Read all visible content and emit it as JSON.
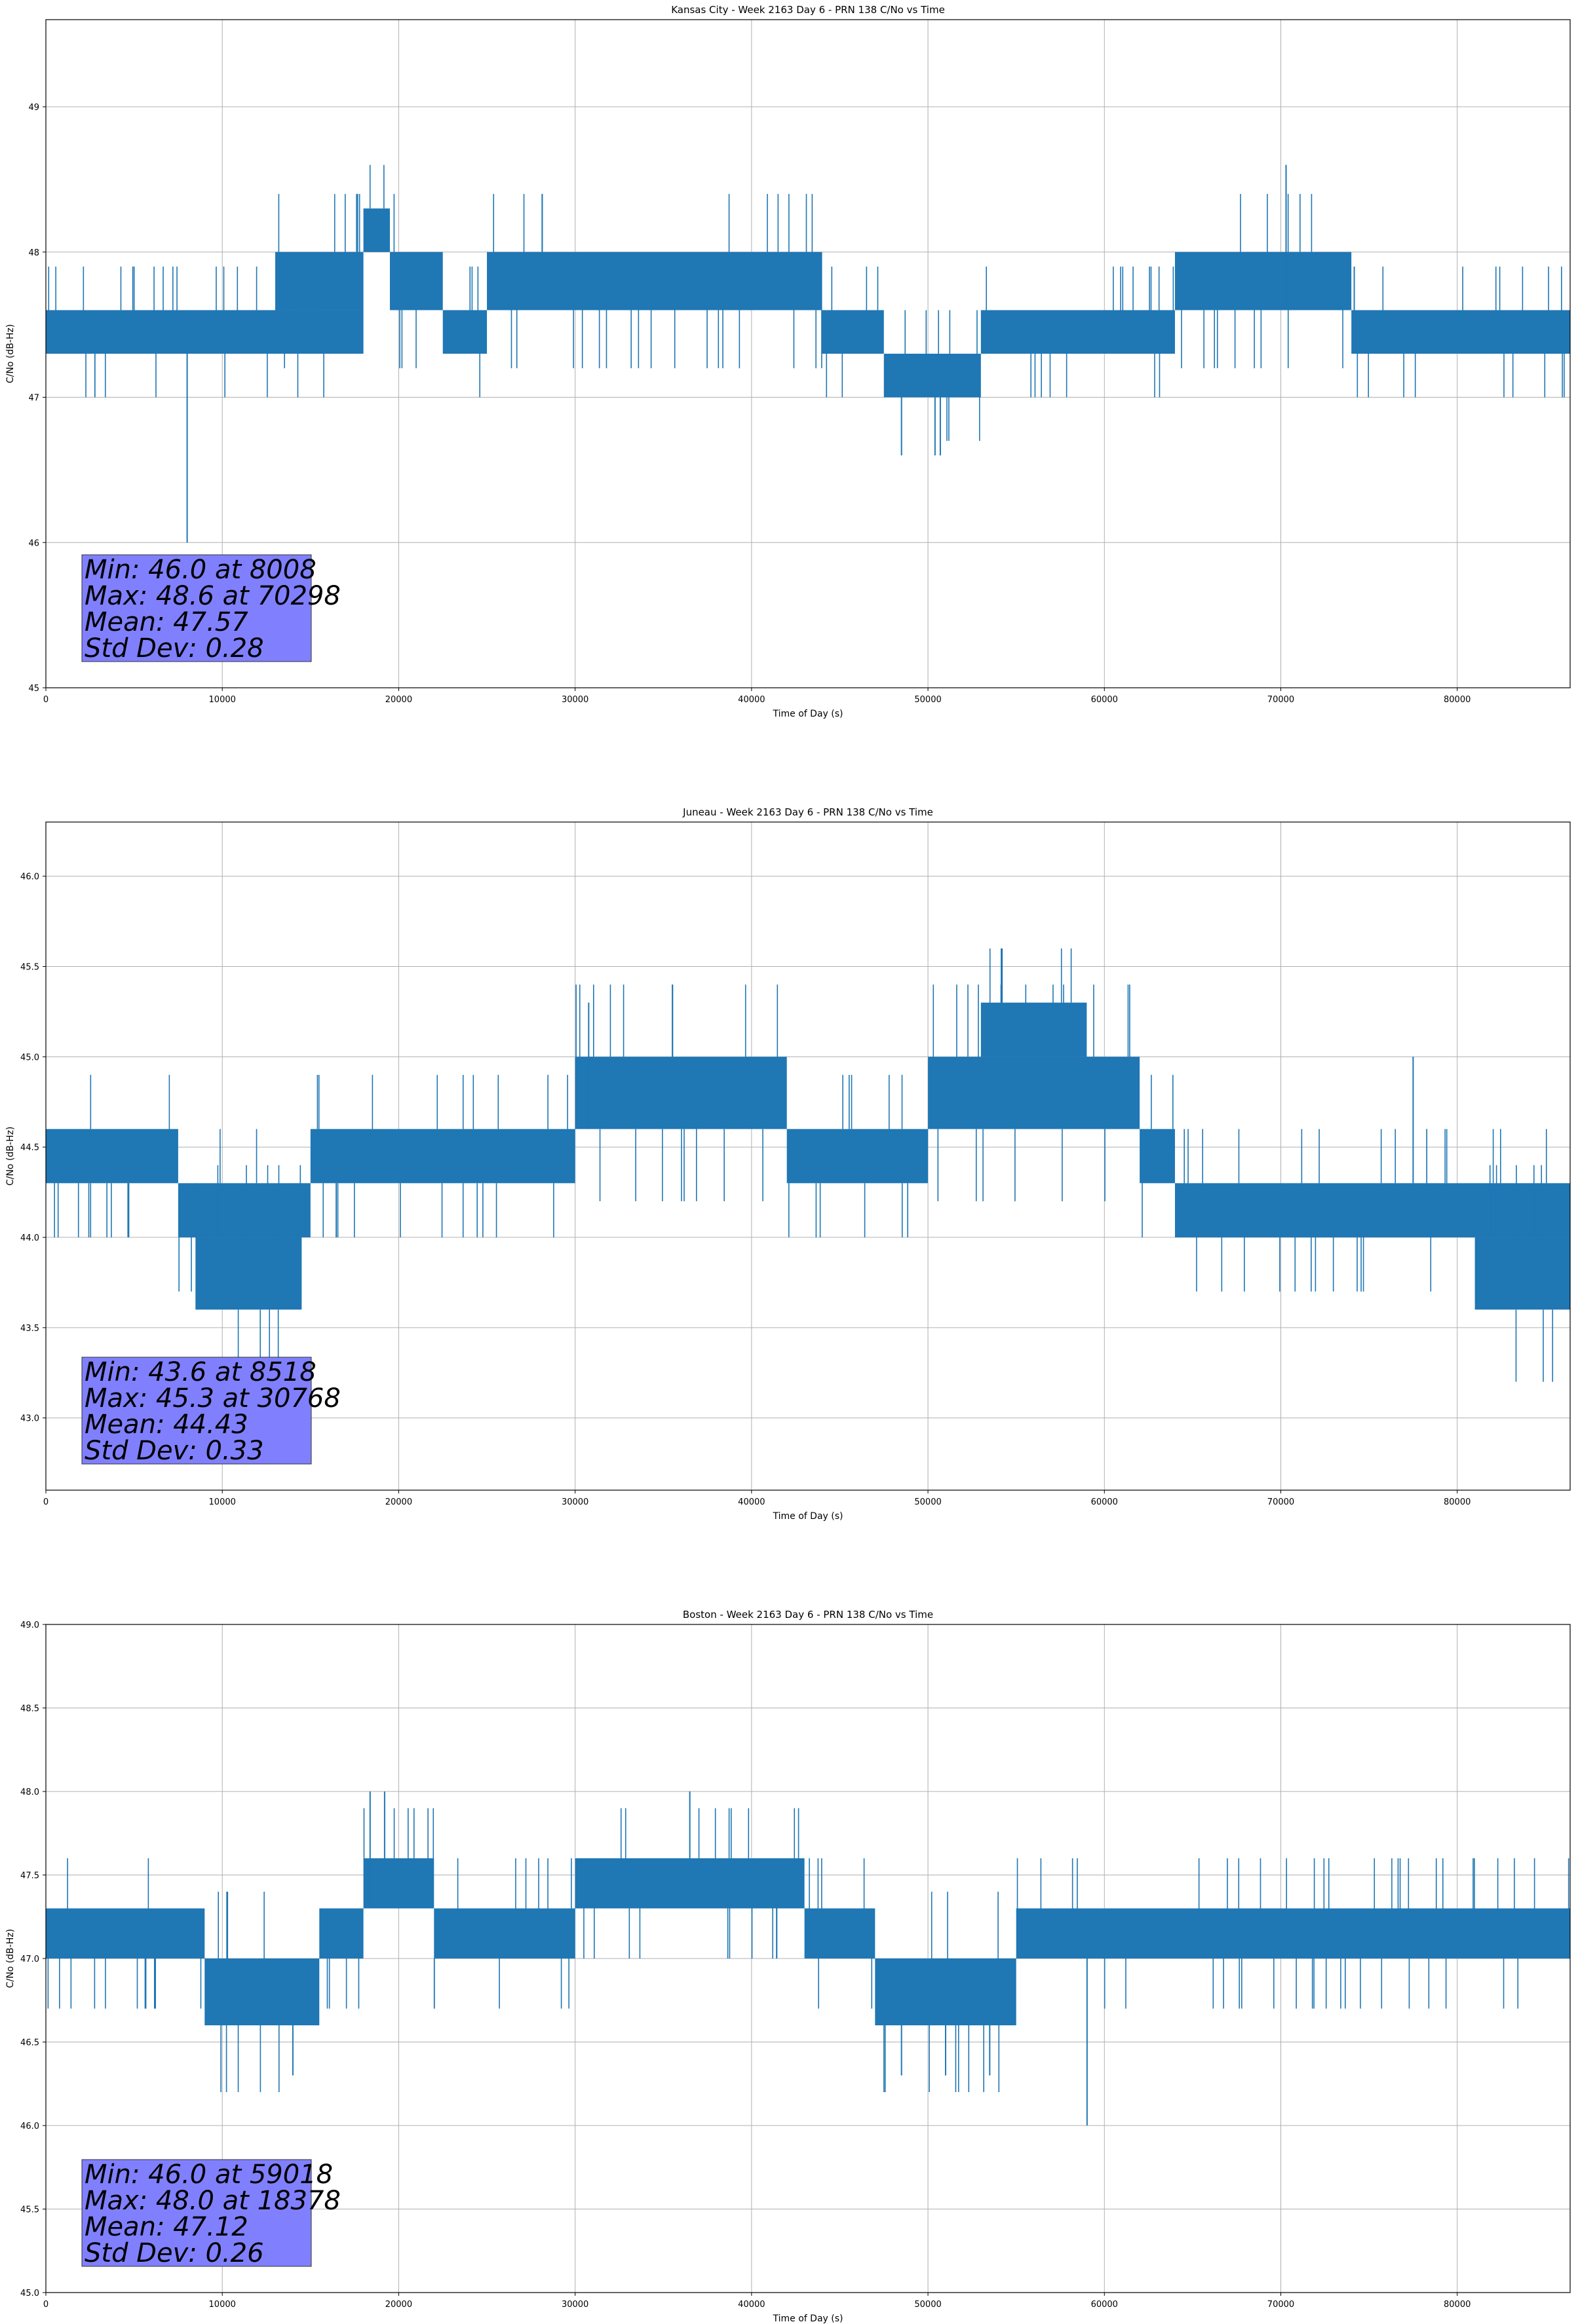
{
  "chart_data": [
    {
      "type": "line",
      "title": "Kansas City - Week 2163 Day 6 - PRN 138 C/No vs Time",
      "xlabel": "Time of Day (s)",
      "ylabel": "C/No (dB-Hz)",
      "xlim": [
        0,
        86400
      ],
      "ylim": [
        45,
        49.6
      ],
      "xticks": [
        0,
        10000,
        20000,
        30000,
        40000,
        50000,
        60000,
        70000,
        80000
      ],
      "yticks": [
        45,
        46,
        47,
        48,
        49
      ],
      "ytick_labels": [
        "45",
        "46",
        "47",
        "48",
        "49"
      ],
      "grid": true,
      "series_color": "#1f77b4",
      "series": [
        {
          "segments": [
            {
              "x0": 0,
              "x1": 18000,
              "lo": 47.3,
              "hi": 47.6
            },
            {
              "x0": 13000,
              "x1": 18000,
              "lo": 47.6,
              "hi": 48.0
            },
            {
              "x0": 18000,
              "x1": 19500,
              "lo": 48.0,
              "hi": 48.3
            },
            {
              "x0": 19500,
              "x1": 22500,
              "lo": 47.6,
              "hi": 48.0
            },
            {
              "x0": 22500,
              "x1": 25000,
              "lo": 47.3,
              "hi": 47.6
            },
            {
              "x0": 25000,
              "x1": 44000,
              "lo": 47.6,
              "hi": 48.0
            },
            {
              "x0": 44000,
              "x1": 47500,
              "lo": 47.3,
              "hi": 47.6
            },
            {
              "x0": 47500,
              "x1": 53000,
              "lo": 47.0,
              "hi": 47.3
            },
            {
              "x0": 53000,
              "x1": 64000,
              "lo": 47.3,
              "hi": 47.6
            },
            {
              "x0": 64000,
              "x1": 74000,
              "lo": 47.6,
              "hi": 48.0
            },
            {
              "x0": 74000,
              "x1": 86400,
              "lo": 47.3,
              "hi": 47.6
            }
          ],
          "spikes": [
            {
              "x": 8008,
              "lo": 46.0,
              "hi": 47.3
            },
            {
              "x": 70298,
              "lo": 47.6,
              "hi": 48.6
            },
            {
              "x": 48500,
              "lo": 46.6,
              "hi": 47.0
            },
            {
              "x": 50400,
              "lo": 46.6,
              "hi": 47.0
            },
            {
              "x": 50700,
              "lo": 46.6,
              "hi": 47.0
            }
          ]
        }
      ],
      "stats": [
        "Min: 46.0 at 8008",
        "Max: 48.6 at 70298",
        "Mean: 47.57",
        "Std Dev: 0.28"
      ]
    },
    {
      "type": "line",
      "title": "Juneau - Week 2163 Day 6 - PRN 138 C/No vs Time",
      "xlabel": "Time of Day (s)",
      "ylabel": "C/No (dB-Hz)",
      "xlim": [
        0,
        86400
      ],
      "ylim": [
        42.6,
        46.3
      ],
      "xticks": [
        0,
        10000,
        20000,
        30000,
        40000,
        50000,
        60000,
        70000,
        80000
      ],
      "yticks": [
        43.0,
        43.5,
        44.0,
        44.5,
        45.0,
        45.5,
        46.0
      ],
      "ytick_labels": [
        "43.0",
        "43.5",
        "44.0",
        "44.5",
        "45.0",
        "45.5",
        "46.0"
      ],
      "grid": true,
      "series_color": "#1f77b4",
      "series": [
        {
          "segments": [
            {
              "x0": 0,
              "x1": 7500,
              "lo": 44.3,
              "hi": 44.6
            },
            {
              "x0": 7500,
              "x1": 15000,
              "lo": 44.0,
              "hi": 44.3
            },
            {
              "x0": 8500,
              "x1": 14500,
              "lo": 43.6,
              "hi": 44.0
            },
            {
              "x0": 15000,
              "x1": 30000,
              "lo": 44.3,
              "hi": 44.6
            },
            {
              "x0": 30000,
              "x1": 42000,
              "lo": 44.6,
              "hi": 45.0
            },
            {
              "x0": 42000,
              "x1": 50000,
              "lo": 44.3,
              "hi": 44.6
            },
            {
              "x0": 50000,
              "x1": 62000,
              "lo": 44.6,
              "hi": 45.0
            },
            {
              "x0": 53000,
              "x1": 59000,
              "lo": 45.0,
              "hi": 45.3
            },
            {
              "x0": 62000,
              "x1": 64000,
              "lo": 44.3,
              "hi": 44.6
            },
            {
              "x0": 64000,
              "x1": 86400,
              "lo": 44.0,
              "hi": 44.3
            },
            {
              "x0": 81000,
              "x1": 86400,
              "lo": 43.6,
              "hi": 44.0
            }
          ],
          "spikes": [
            {
              "x": 8518,
              "lo": 43.6,
              "hi": 44.3
            },
            {
              "x": 30768,
              "lo": 44.6,
              "hi": 45.3
            },
            {
              "x": 77500,
              "lo": 44.3,
              "hi": 45.0
            }
          ]
        }
      ],
      "stats": [
        "Min: 43.6 at 8518",
        "Max: 45.3 at 30768",
        "Mean: 44.43",
        "Std Dev: 0.33"
      ]
    },
    {
      "type": "line",
      "title": "Boston - Week 2163 Day 6 - PRN 138 C/No vs Time",
      "xlabel": "Time of Day (s)",
      "ylabel": "C/No (dB-Hz)",
      "xlim": [
        0,
        86400
      ],
      "ylim": [
        45.0,
        49.0
      ],
      "xticks": [
        0,
        10000,
        20000,
        30000,
        40000,
        50000,
        60000,
        70000,
        80000
      ],
      "yticks": [
        45.0,
        45.5,
        46.0,
        46.5,
        47.0,
        47.5,
        48.0,
        48.5,
        49.0
      ],
      "ytick_labels": [
        "45.0",
        "45.5",
        "46.0",
        "46.5",
        "47.0",
        "47.5",
        "48.0",
        "48.5",
        "49.0"
      ],
      "grid": true,
      "series_color": "#1f77b4",
      "series": [
        {
          "segments": [
            {
              "x0": 0,
              "x1": 9000,
              "lo": 47.0,
              "hi": 47.3
            },
            {
              "x0": 9000,
              "x1": 15500,
              "lo": 46.6,
              "hi": 47.0
            },
            {
              "x0": 15500,
              "x1": 18000,
              "lo": 47.0,
              "hi": 47.3
            },
            {
              "x0": 18000,
              "x1": 22000,
              "lo": 47.3,
              "hi": 47.6
            },
            {
              "x0": 22000,
              "x1": 30000,
              "lo": 47.0,
              "hi": 47.3
            },
            {
              "x0": 30000,
              "x1": 43000,
              "lo": 47.3,
              "hi": 47.6
            },
            {
              "x0": 43000,
              "x1": 47000,
              "lo": 47.0,
              "hi": 47.3
            },
            {
              "x0": 47000,
              "x1": 55000,
              "lo": 46.6,
              "hi": 47.0
            },
            {
              "x0": 55000,
              "x1": 86400,
              "lo": 47.0,
              "hi": 47.3
            }
          ],
          "spikes": [
            {
              "x": 59018,
              "lo": 46.0,
              "hi": 47.0
            },
            {
              "x": 18378,
              "lo": 47.3,
              "hi": 48.0
            },
            {
              "x": 19200,
              "lo": 47.3,
              "hi": 48.0
            },
            {
              "x": 36500,
              "lo": 47.3,
              "hi": 48.0
            },
            {
              "x": 14000,
              "lo": 46.3,
              "hi": 46.6
            },
            {
              "x": 48500,
              "lo": 46.3,
              "hi": 46.6
            },
            {
              "x": 51000,
              "lo": 46.3,
              "hi": 46.6
            },
            {
              "x": 53500,
              "lo": 46.3,
              "hi": 46.6
            }
          ]
        }
      ],
      "stats": [
        "Min: 46.0 at 59018",
        "Max: 48.0 at 18378",
        "Mean: 47.12",
        "Std Dev: 0.26"
      ]
    }
  ]
}
